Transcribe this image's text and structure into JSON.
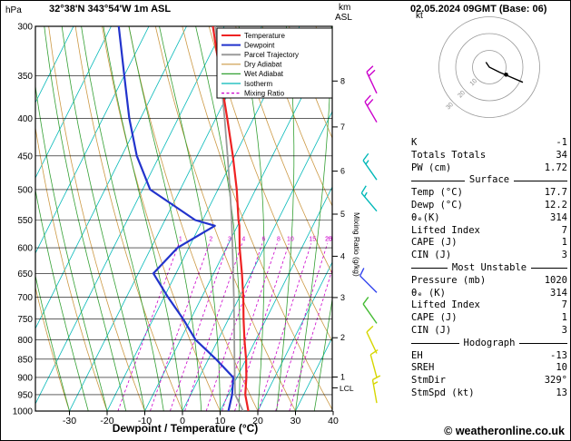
{
  "header": {
    "pressure_unit": "hPa",
    "station": "32°38'N 343°54'W 1m ASL",
    "altitude_unit_top": "km",
    "altitude_unit_bottom": "ASL",
    "datetime": "02.05.2024 09GMT (Base: 06)"
  },
  "axes": {
    "xlabel": "Dewpoint / Temperature (°C)",
    "mixing_ratio_axis_label": "Mixing Ratio (g/kg)"
  },
  "footer": {
    "copyright": "© weatheronline.co.uk"
  },
  "colors": {
    "temperature": "#ee2222",
    "dewpoint": "#2233cc",
    "parcel": "#9a9a9a",
    "dry_adiabat": "#cc9944",
    "wet_adiabat": "#33a033",
    "isotherm": "#00b8b8",
    "mixing_ratio": "#cc00cc",
    "grid": "#000000"
  },
  "legend": [
    {
      "label": "Temperature",
      "color": "#ee2222",
      "width": 2,
      "dash": false
    },
    {
      "label": "Dewpoint",
      "color": "#2233cc",
      "width": 2,
      "dash": false
    },
    {
      "label": "Parcel Trajectory",
      "color": "#9a9a9a",
      "width": 2,
      "dash": false
    },
    {
      "label": "Dry Adiabat",
      "color": "#cc9944",
      "width": 1.2,
      "dash": false
    },
    {
      "label": "Wet Adiabat",
      "color": "#33a033",
      "width": 1.2,
      "dash": false
    },
    {
      "label": "Isotherm",
      "color": "#00b8b8",
      "width": 1.2,
      "dash": false
    },
    {
      "label": "Mixing Ratio",
      "color": "#cc00cc",
      "width": 1.2,
      "dash": true
    }
  ],
  "chart_data": {
    "type": "skewt-sounding",
    "pressure_axis_range_hpa": [
      300,
      1000
    ],
    "pressure_axis_hpa": [
      300,
      350,
      400,
      450,
      500,
      550,
      600,
      650,
      700,
      750,
      800,
      850,
      900,
      950,
      1000
    ],
    "temp_axis_c": [
      -30,
      -20,
      -10,
      0,
      10,
      20,
      30,
      40
    ],
    "isotherm_step_c": 10,
    "dry_adiabat_step_c": 10,
    "wet_adiabat_step_c": 5,
    "mixing_ratio_lines_gkg": [
      1,
      2,
      3,
      4,
      6,
      8,
      10,
      15,
      20,
      25
    ],
    "km_ticks": [
      {
        "km": 8,
        "hpa": 356
      },
      {
        "km": 7,
        "hpa": 411
      },
      {
        "km": 6,
        "hpa": 472
      },
      {
        "km": 5,
        "hpa": 540
      },
      {
        "km": 4,
        "hpa": 616
      },
      {
        "km": 3,
        "hpa": 701
      },
      {
        "km": 2,
        "hpa": 795
      },
      {
        "km": 1,
        "hpa": 899
      }
    ],
    "lcl": {
      "label": "LCL",
      "hpa": 930
    },
    "sounding": {
      "pressure_hpa": [
        1000,
        950,
        900,
        850,
        800,
        750,
        700,
        650,
        600,
        560,
        550,
        500,
        450,
        400,
        350,
        300
      ],
      "temperature_c": [
        17.5,
        14.5,
        12.5,
        10.0,
        7.0,
        4.0,
        1.0,
        -2.5,
        -6.5,
        -9.5,
        -10.5,
        -15.0,
        -20.5,
        -27.0,
        -34.5,
        -43.0
      ],
      "dewpoint_c": [
        12.2,
        11.0,
        9.0,
        2.0,
        -6.0,
        -12.0,
        -19.0,
        -26.0,
        -23.0,
        -16.0,
        -22.0,
        -38.0,
        -46.0,
        -53.0,
        -60.0,
        -68.0
      ],
      "parcel_c": [
        16.1,
        11.8,
        9.4,
        6.9,
        4.3,
        1.5,
        -1.5,
        -4.8,
        -8.4,
        -11.5,
        -12.3,
        -16.8,
        -21.9,
        -27.7,
        -34.4,
        -42.4
      ]
    },
    "wind_barbs": [
      {
        "hpa": 370,
        "speed_kt": 20,
        "dir_deg": 335,
        "color": "#cc00cc"
      },
      {
        "hpa": 405,
        "speed_kt": 20,
        "dir_deg": 330,
        "color": "#cc00cc"
      },
      {
        "hpa": 485,
        "speed_kt": 15,
        "dir_deg": 325,
        "color": "#00b8b8"
      },
      {
        "hpa": 535,
        "speed_kt": 15,
        "dir_deg": 320,
        "color": "#00b8b8"
      },
      {
        "hpa": 690,
        "speed_kt": 10,
        "dir_deg": 315,
        "color": "#3344ee"
      },
      {
        "hpa": 760,
        "speed_kt": 10,
        "dir_deg": 325,
        "color": "#44bb33"
      },
      {
        "hpa": 835,
        "speed_kt": 10,
        "dir_deg": 335,
        "color": "#d6d600"
      },
      {
        "hpa": 900,
        "speed_kt": 10,
        "dir_deg": 345,
        "color": "#d6d600"
      },
      {
        "hpa": 975,
        "speed_kt": 15,
        "dir_deg": 350,
        "color": "#d6d600"
      }
    ],
    "hodograph": {
      "unit": "kt",
      "ring_radii_kt": [
        10,
        20,
        30
      ],
      "ring_labels": [
        "10",
        "20",
        "30"
      ],
      "trace_uv_kt": [
        [
          -2,
          3
        ],
        [
          0,
          0
        ],
        [
          6,
          -3
        ],
        [
          13,
          -6
        ],
        [
          20,
          -9
        ]
      ],
      "marker_uv_kt": [
        10,
        -4.5
      ]
    }
  },
  "indices": {
    "rows_top": [
      [
        "K",
        "-1"
      ],
      [
        "Totals Totals",
        "34"
      ],
      [
        "PW (cm)",
        "1.72"
      ]
    ],
    "sections": [
      {
        "title": "Surface",
        "rows": [
          [
            "Temp (°C)",
            "17.7"
          ],
          [
            "Dewp (°C)",
            "12.2"
          ],
          [
            "θₑ(K)",
            "314"
          ],
          [
            "Lifted Index",
            "7"
          ],
          [
            "CAPE (J)",
            "1"
          ],
          [
            "CIN (J)",
            "3"
          ]
        ]
      },
      {
        "title": "Most Unstable",
        "rows": [
          [
            "Pressure (mb)",
            "1020"
          ],
          [
            "θₑ (K)",
            "314"
          ],
          [
            "Lifted Index",
            "7"
          ],
          [
            "CAPE (J)",
            "1"
          ],
          [
            "CIN (J)",
            "3"
          ]
        ]
      },
      {
        "title": "Hodograph",
        "rows": [
          [
            "EH",
            "-13"
          ],
          [
            "SREH",
            "10"
          ],
          [
            "StmDir",
            "329°"
          ],
          [
            "StmSpd (kt)",
            "13"
          ]
        ]
      }
    ]
  }
}
